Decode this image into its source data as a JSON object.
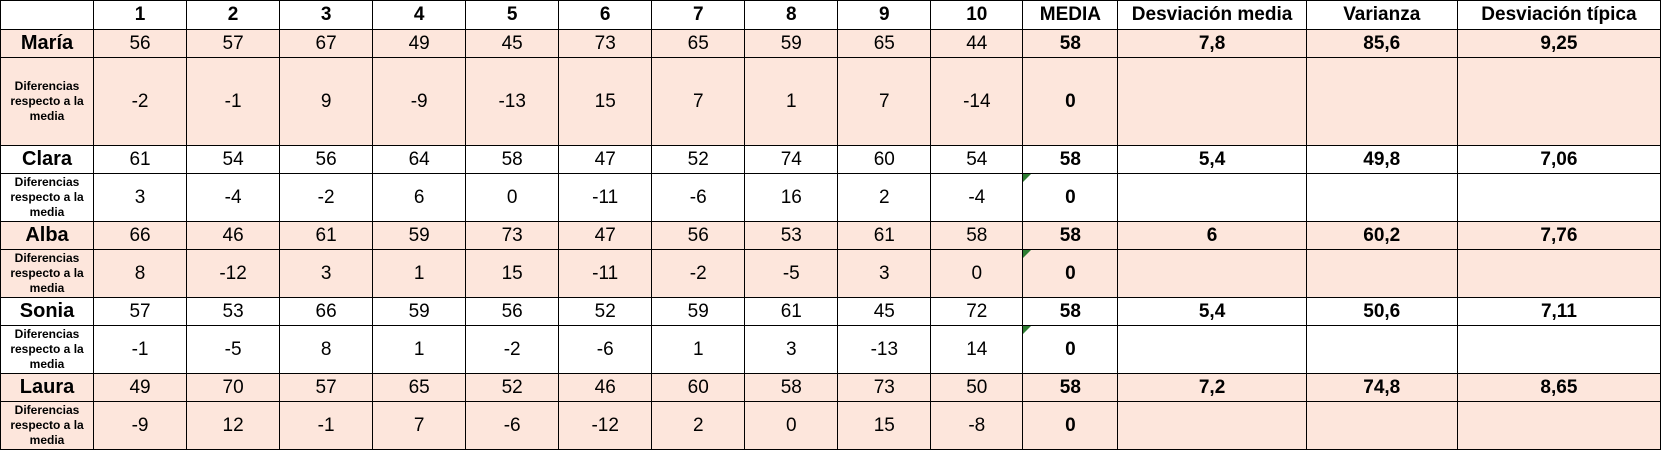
{
  "header": {
    "corner": "",
    "columns": [
      "1",
      "2",
      "3",
      "4",
      "5",
      "6",
      "7",
      "8",
      "9",
      "10"
    ],
    "media": "MEDIA",
    "desv_media": "Desviación media",
    "varianza": "Varianza",
    "desv_tipica": "Desviación típica"
  },
  "diff_label": "Diferencias respecto a la media",
  "rows": [
    {
      "name": "María",
      "values": [
        "56",
        "57",
        "67",
        "49",
        "45",
        "73",
        "65",
        "59",
        "65",
        "44"
      ],
      "media": "58",
      "desv_media": "7,8",
      "varianza": "85,6",
      "desv_tipica": "9,25",
      "diffs": [
        "-2",
        "-1",
        "9",
        "-9",
        "-13",
        "15",
        "7",
        "1",
        "7",
        "-14"
      ],
      "diff_media": "0"
    },
    {
      "name": "Clara",
      "values": [
        "61",
        "54",
        "56",
        "64",
        "58",
        "47",
        "52",
        "74",
        "60",
        "54"
      ],
      "media": "58",
      "desv_media": "5,4",
      "varianza": "49,8",
      "desv_tipica": "7,06",
      "diffs": [
        "3",
        "-4",
        "-2",
        "6",
        "0",
        "-11",
        "-6",
        "16",
        "2",
        "-4"
      ],
      "diff_media": "0"
    },
    {
      "name": "Alba",
      "values": [
        "66",
        "46",
        "61",
        "59",
        "73",
        "47",
        "56",
        "53",
        "61",
        "58"
      ],
      "media": "58",
      "desv_media": "6",
      "varianza": "60,2",
      "desv_tipica": "7,76",
      "diffs": [
        "8",
        "-12",
        "3",
        "1",
        "15",
        "-11",
        "-2",
        "-5",
        "3",
        "0"
      ],
      "diff_media": "0"
    },
    {
      "name": "Sonia",
      "values": [
        "57",
        "53",
        "66",
        "59",
        "56",
        "52",
        "59",
        "61",
        "45",
        "72"
      ],
      "media": "58",
      "desv_media": "5,4",
      "varianza": "50,6",
      "desv_tipica": "7,11",
      "diffs": [
        "-1",
        "-5",
        "8",
        "1",
        "-2",
        "-6",
        "1",
        "3",
        "-13",
        "14"
      ],
      "diff_media": "0"
    },
    {
      "name": "Laura",
      "values": [
        "49",
        "70",
        "57",
        "65",
        "52",
        "46",
        "60",
        "58",
        "73",
        "50"
      ],
      "media": "58",
      "desv_media": "7,2",
      "varianza": "74,8",
      "desv_tipica": "8,65",
      "diffs": [
        "-9",
        "12",
        "-1",
        "7",
        "-6",
        "-12",
        "2",
        "0",
        "15",
        "-8"
      ],
      "diff_media": "0"
    }
  ],
  "colors": {
    "shade": "#fde6dc",
    "border": "#000000",
    "comment_marker": "#2e7d32"
  }
}
